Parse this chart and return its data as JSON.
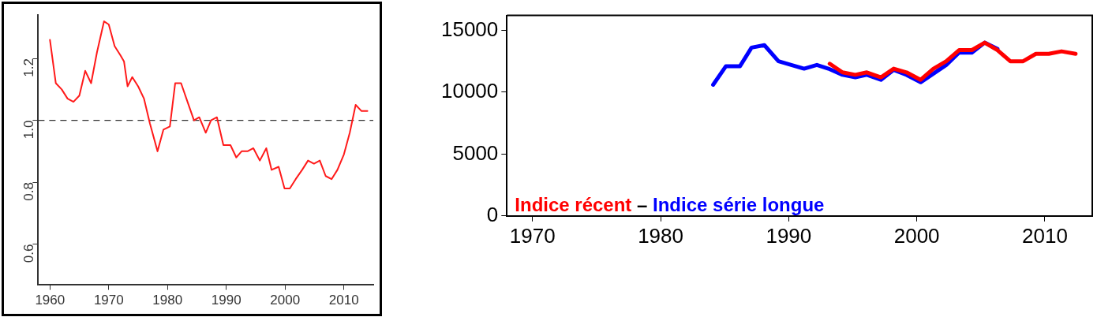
{
  "chart_data": [
    {
      "type": "line",
      "xlim": [
        1958,
        2015
      ],
      "ylim": [
        0.47,
        1.34
      ],
      "xticks": [
        1960,
        1970,
        1980,
        1990,
        2000,
        2010
      ],
      "yticks": [
        0.6,
        0.8,
        {
          "value": 1.0,
          "label": "1.0"
        },
        1.2
      ],
      "grid": false,
      "legend": false,
      "marker": "none",
      "line_style": "solid",
      "ref_lines": [
        {
          "axis": "y",
          "value": 1.0,
          "color": "#333333",
          "line_style": "dashed"
        }
      ],
      "series": [
        {
          "color": "#ff1a1a",
          "x": [
            1960,
            1961,
            1962,
            1963,
            1964,
            1965,
            1966,
            1967,
            1968,
            1969.2,
            1970,
            1971,
            1972,
            1972.6,
            1973.2,
            1974,
            1975,
            1976,
            1977,
            1978.3,
            1979.3,
            1980.4,
            1981.3,
            1982.3,
            1983.4,
            1984.5,
            1985.4,
            1986.5,
            1987.4,
            1988.4,
            1989.5,
            1990.7,
            1991.7,
            1992.6,
            1993.6,
            1994.6,
            1995.7,
            1996.8,
            1997.7,
            1998.9,
            1999.9,
            2000.8,
            2001.8,
            2002.9,
            2003.9,
            2004.9,
            2005.9,
            2006.9,
            2007.9,
            2008.9,
            2010,
            2011,
            2012,
            2013,
            2014
          ],
          "values": [
            1.26,
            1.12,
            1.1,
            1.07,
            1.06,
            1.08,
            1.16,
            1.12,
            1.22,
            1.32,
            1.31,
            1.24,
            1.21,
            1.19,
            1.11,
            1.14,
            1.11,
            1.07,
            0.99,
            0.9,
            0.97,
            0.98,
            1.12,
            1.12,
            1.06,
            1.0,
            1.01,
            0.96,
            1.0,
            1.01,
            0.92,
            0.92,
            0.88,
            0.9,
            0.9,
            0.91,
            0.87,
            0.91,
            0.84,
            0.85,
            0.78,
            0.78,
            0.81,
            0.84,
            0.87,
            0.86,
            0.87,
            0.82,
            0.81,
            0.84,
            0.89,
            0.96,
            1.05,
            1.03,
            1.03
          ]
        }
      ]
    },
    {
      "type": "line",
      "xlim": [
        1968,
        2013.7
      ],
      "ylim": [
        0,
        16200
      ],
      "xticks": [
        1970,
        1980,
        1990,
        2000,
        2010
      ],
      "yticks": [
        0,
        5000,
        10000,
        15000
      ],
      "grid": false,
      "legend": "bottom left",
      "marker": "none",
      "line_style": "solid",
      "annotations": [
        "–"
      ],
      "series": [
        {
          "name": "Indice récent",
          "color": "#ff0000",
          "x": [
            1993.2,
            1994.2,
            1995.2,
            1996.1,
            1997.2,
            1998.2,
            1999.2,
            2000.3,
            2001.3,
            2002.3,
            2003.3,
            2004.3,
            2005.3,
            2006.3,
            2007.3,
            2008.3,
            2009.3,
            2010.3,
            2011.3,
            2012.4
          ],
          "values": [
            12300,
            11600,
            11400,
            11600,
            11200,
            11900,
            11600,
            11000,
            11900,
            12500,
            13400,
            13400,
            14000,
            13400,
            12500,
            12500,
            13100,
            13100,
            13300,
            13100
          ]
        },
        {
          "name": "Indice série longue",
          "color": "#0000ff",
          "x": [
            1984.1,
            1985.1,
            1986.2,
            1987.1,
            1988.1,
            1989.2,
            1990.2,
            1991.2,
            1992.2,
            1993.1,
            1994.2,
            1995.2,
            1996.1,
            1997.2,
            1998.2,
            1999.2,
            2000.3,
            2001.3,
            2002.3,
            2003.3,
            2004.3,
            2005.3,
            2006.3
          ],
          "values": [
            10600,
            12100,
            12100,
            13600,
            13800,
            12500,
            12200,
            11900,
            12200,
            11900,
            11400,
            11200,
            11400,
            11000,
            11800,
            11400,
            10800,
            11500,
            12200,
            13200,
            13200,
            14000,
            13500
          ]
        }
      ]
    }
  ]
}
